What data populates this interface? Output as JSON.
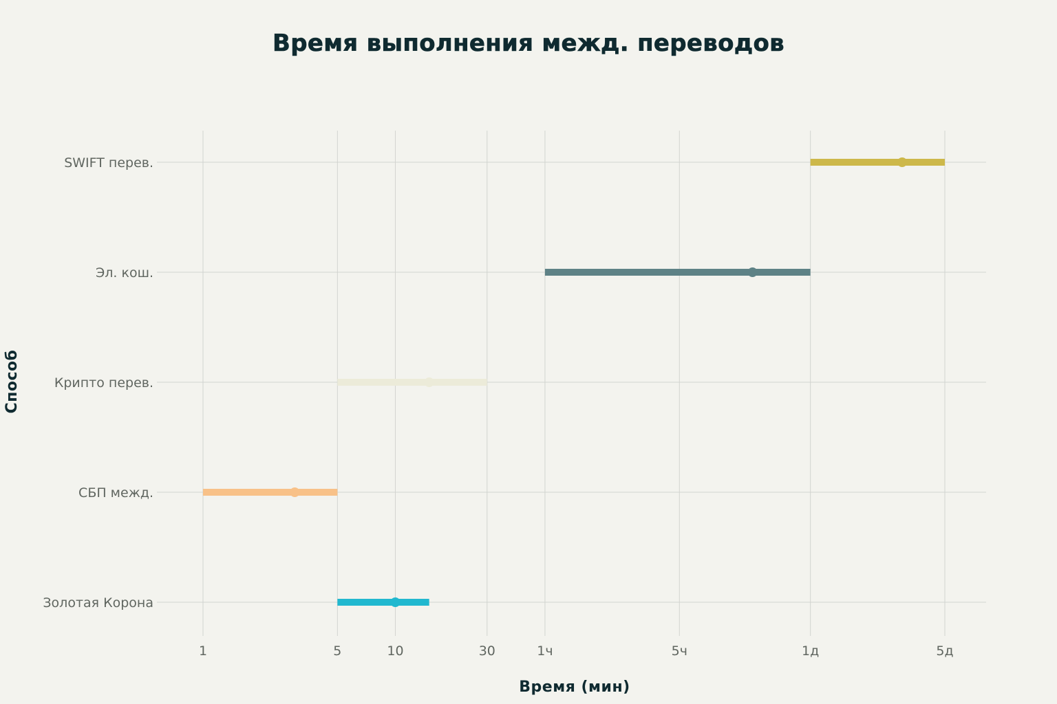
{
  "chart_data": {
    "type": "range",
    "title": "Время выполнения межд. переводов",
    "xlabel": "Время (мин)",
    "ylabel": "Способ",
    "x_scale": "log",
    "xlim": [
      1,
      7200
    ],
    "grid": true,
    "x_ticks": [
      {
        "value": 1,
        "label": "1"
      },
      {
        "value": 5,
        "label": "5"
      },
      {
        "value": 10,
        "label": "10"
      },
      {
        "value": 30,
        "label": "30"
      },
      {
        "value": 60,
        "label": "1ч"
      },
      {
        "value": 300,
        "label": "5ч"
      },
      {
        "value": 1440,
        "label": "1д"
      },
      {
        "value": 7200,
        "label": "5д"
      }
    ],
    "categories": [
      "SWIFT перев.",
      "Эл. кош.",
      "Крипто перев.",
      "СБП межд.",
      "Золотая Корона"
    ],
    "ranges": [
      {
        "category": "SWIFT перев.",
        "min": 1440,
        "max": 7200,
        "point": 4320,
        "color": "#cdb84a"
      },
      {
        "category": "Эл. кош.",
        "min": 60,
        "max": 1440,
        "point": 720,
        "color": "#5e8286"
      },
      {
        "category": "Крипто перев.",
        "min": 5,
        "max": 30,
        "point": 15,
        "color": "#ecebd9"
      },
      {
        "category": "СБП межд.",
        "min": 1,
        "max": 5,
        "point": 3,
        "color": "#f8c188"
      },
      {
        "category": "Золотая Корона",
        "min": 5,
        "max": 15,
        "point": 10,
        "color": "#21b8cf"
      }
    ]
  }
}
